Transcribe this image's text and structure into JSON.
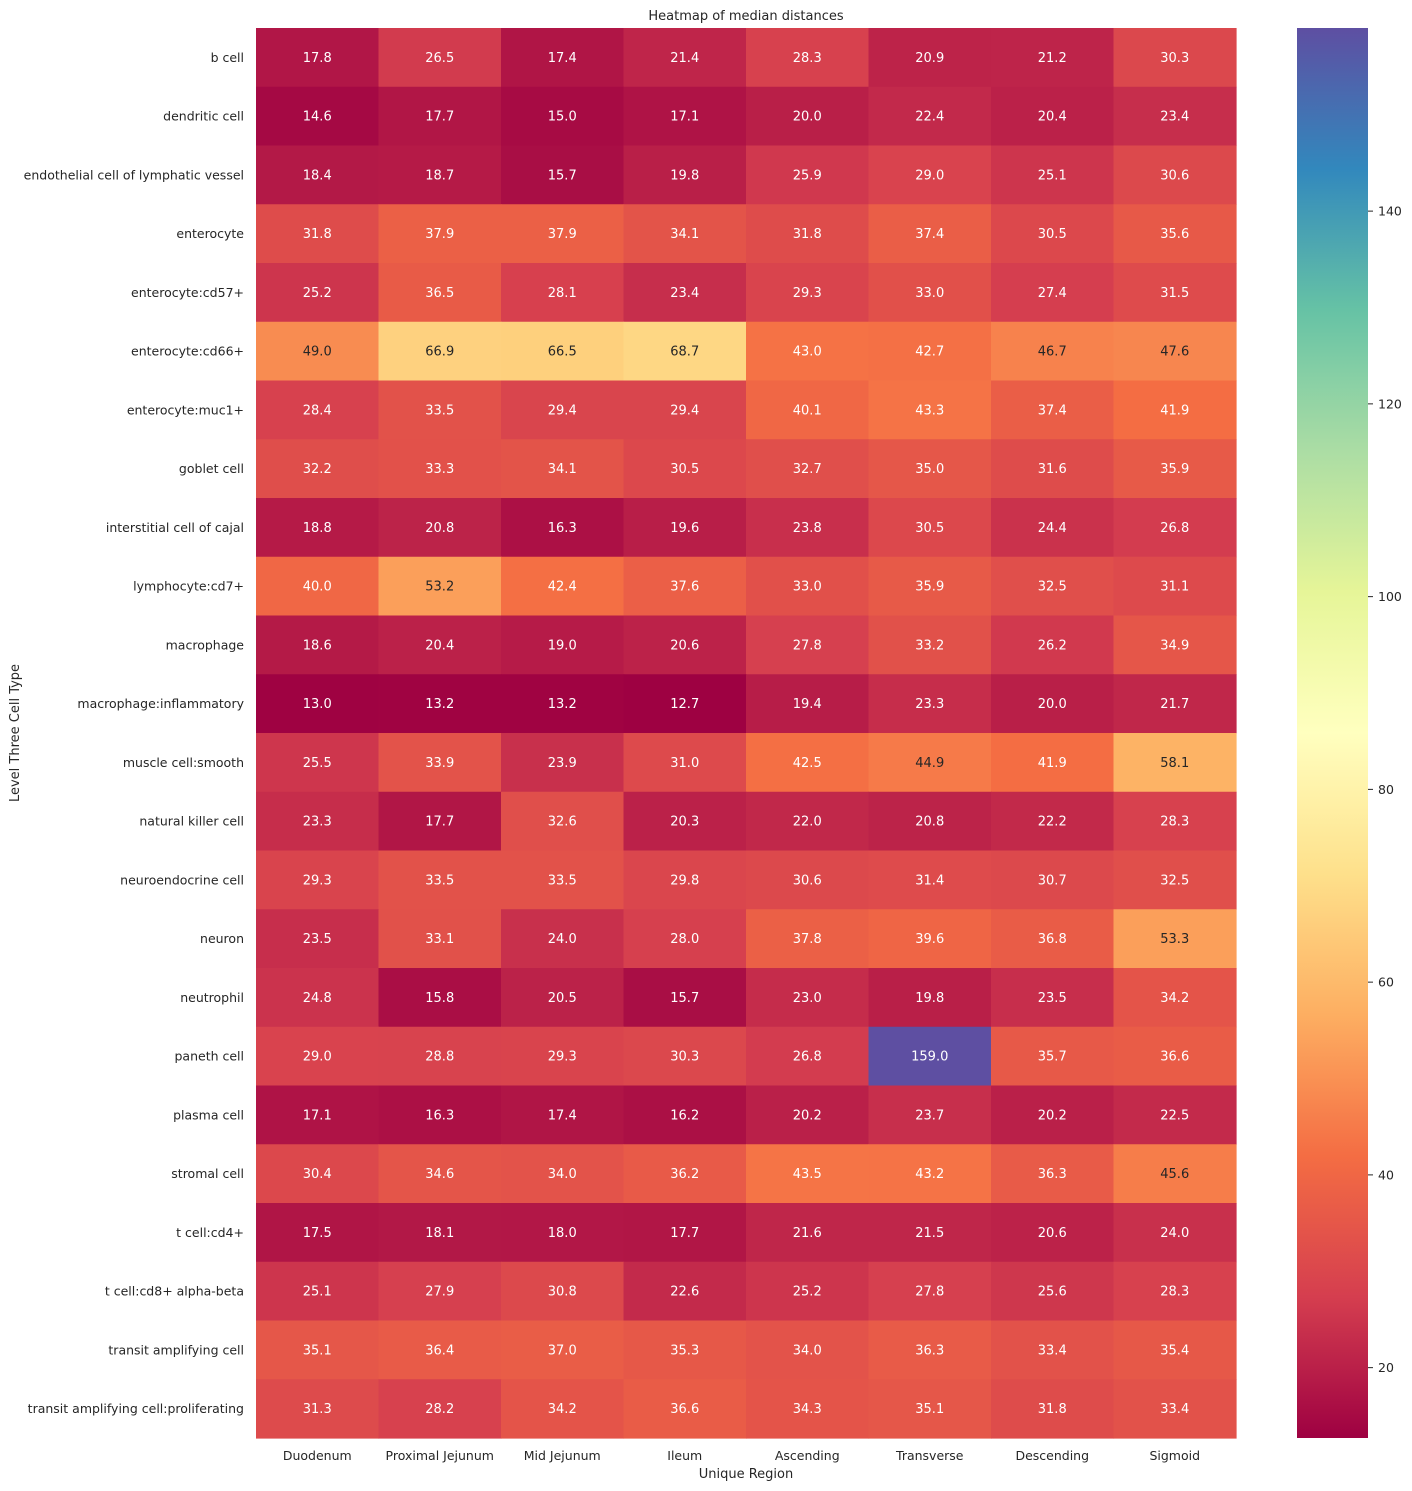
{
  "chart_data": {
    "type": "heatmap",
    "title": "Heatmap of median distances",
    "xlabel": "Unique Region",
    "ylabel": "Level Three Cell Type",
    "colormap": "Spectral",
    "color_range": [
      12.7,
      159.0
    ],
    "colorbar_ticks": [
      20,
      40,
      60,
      80,
      100,
      120,
      140
    ],
    "annotation_format": ".1f",
    "x": [
      "Duodenum",
      "Proximal Jejunum",
      "Mid Jejunum",
      "Ileum",
      "Ascending",
      "Transverse",
      "Descending",
      "Sigmoid"
    ],
    "y": [
      "b cell",
      "dendritic cell",
      "endothelial cell of lymphatic vessel",
      "enterocyte",
      "enterocyte:cd57+",
      "enterocyte:cd66+",
      "enterocyte:muc1+",
      "goblet cell",
      "interstitial cell of cajal",
      "lymphocyte:cd7+",
      "macrophage",
      "macrophage:inflammatory",
      "muscle cell:smooth",
      "natural killer cell",
      "neuroendocrine cell",
      "neuron",
      "neutrophil",
      "paneth cell",
      "plasma cell",
      "stromal cell",
      "t cell:cd4+",
      "t cell:cd8+ alpha-beta",
      "transit amplifying cell",
      "transit amplifying cell:proliferating"
    ],
    "values": [
      [
        17.8,
        26.5,
        17.4,
        21.4,
        28.3,
        20.9,
        21.2,
        30.3
      ],
      [
        14.6,
        17.7,
        15.0,
        17.1,
        20.0,
        22.4,
        20.4,
        23.4
      ],
      [
        18.4,
        18.7,
        15.7,
        19.8,
        25.9,
        29.0,
        25.1,
        30.6
      ],
      [
        31.8,
        37.9,
        37.9,
        34.1,
        31.8,
        37.4,
        30.5,
        35.6
      ],
      [
        25.2,
        36.5,
        28.1,
        23.4,
        29.3,
        33.0,
        27.4,
        31.5
      ],
      [
        49.0,
        66.9,
        66.5,
        68.7,
        43.0,
        42.7,
        46.7,
        47.6
      ],
      [
        28.4,
        33.5,
        29.4,
        29.4,
        40.1,
        43.3,
        37.4,
        41.9
      ],
      [
        32.2,
        33.3,
        34.1,
        30.5,
        32.7,
        35.0,
        31.6,
        35.9
      ],
      [
        18.8,
        20.8,
        16.3,
        19.6,
        23.8,
        30.5,
        24.4,
        26.8
      ],
      [
        40.0,
        53.2,
        42.4,
        37.6,
        33.0,
        35.9,
        32.5,
        31.1
      ],
      [
        18.6,
        20.4,
        19.0,
        20.6,
        27.8,
        33.2,
        26.2,
        34.9
      ],
      [
        13.0,
        13.2,
        13.2,
        12.7,
        19.4,
        23.3,
        20.0,
        21.7
      ],
      [
        25.5,
        33.9,
        23.9,
        31.0,
        42.5,
        44.9,
        41.9,
        58.1
      ],
      [
        23.3,
        17.7,
        32.6,
        20.3,
        22.0,
        20.8,
        22.2,
        28.3
      ],
      [
        29.3,
        33.5,
        33.5,
        29.8,
        30.6,
        31.4,
        30.7,
        32.5
      ],
      [
        23.5,
        33.1,
        24.0,
        28.0,
        37.8,
        39.6,
        36.8,
        53.3
      ],
      [
        24.8,
        15.8,
        20.5,
        15.7,
        23.0,
        19.8,
        23.5,
        34.2
      ],
      [
        29.0,
        28.8,
        29.3,
        30.3,
        26.8,
        159.0,
        35.7,
        36.6
      ],
      [
        17.1,
        16.3,
        17.4,
        16.2,
        20.2,
        23.7,
        20.2,
        22.5
      ],
      [
        30.4,
        34.6,
        34.0,
        36.2,
        43.5,
        43.2,
        36.3,
        45.6
      ],
      [
        17.5,
        18.1,
        18.0,
        17.7,
        21.6,
        21.5,
        20.6,
        24.0
      ],
      [
        25.1,
        27.9,
        30.8,
        22.6,
        25.2,
        27.8,
        25.6,
        28.3
      ],
      [
        35.1,
        36.4,
        37.0,
        35.3,
        34.0,
        36.3,
        33.4,
        35.4
      ],
      [
        31.3,
        28.2,
        34.2,
        36.6,
        34.3,
        35.1,
        31.8,
        33.4
      ]
    ],
    "grid": false,
    "legend": "colorbar-right"
  }
}
